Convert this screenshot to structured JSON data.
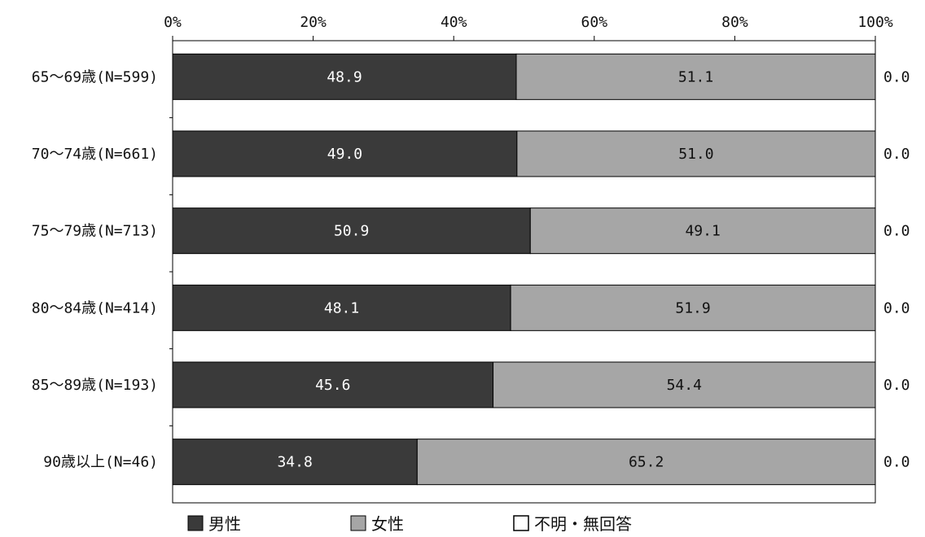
{
  "chart_data": {
    "type": "bar",
    "orientation": "horizontal",
    "stacked": true,
    "percent": true,
    "xlim": [
      0,
      100
    ],
    "x_ticks": [
      "0%",
      "20%",
      "40%",
      "60%",
      "80%",
      "100%"
    ],
    "categories": [
      "65～69歳(N=599)",
      "70～74歳(N=661)",
      "75～79歳(N=713)",
      "80～84歳(N=414)",
      "85～89歳(N=193)",
      "90歳以上(N=46)"
    ],
    "series": [
      {
        "name": "男性",
        "color": "#3a3a3a",
        "values": [
          48.9,
          49.0,
          50.9,
          48.1,
          45.6,
          34.8
        ],
        "labels": [
          "48.9",
          "49.0",
          "50.9",
          "48.1",
          "45.6",
          "34.8"
        ]
      },
      {
        "name": "女性",
        "color": "#a6a6a6",
        "values": [
          51.1,
          51.0,
          49.1,
          51.9,
          54.4,
          65.2
        ],
        "labels": [
          "51.1",
          "51.0",
          "49.1",
          "51.9",
          "54.4",
          "65.2"
        ]
      },
      {
        "name": "不明・無回答",
        "color": "#ffffff",
        "values": [
          0.0,
          0.0,
          0.0,
          0.0,
          0.0,
          0.0
        ],
        "labels": [
          "0.0",
          "0.0",
          "0.0",
          "0.0",
          "0.0",
          "0.0"
        ]
      }
    ],
    "legend_position": "bottom",
    "grid": false
  },
  "legend": {
    "items": [
      {
        "symbol": "■",
        "label": "男性"
      },
      {
        "symbol": "■",
        "label": "女性"
      },
      {
        "symbol": "□",
        "label": "不明・無回答"
      }
    ]
  }
}
